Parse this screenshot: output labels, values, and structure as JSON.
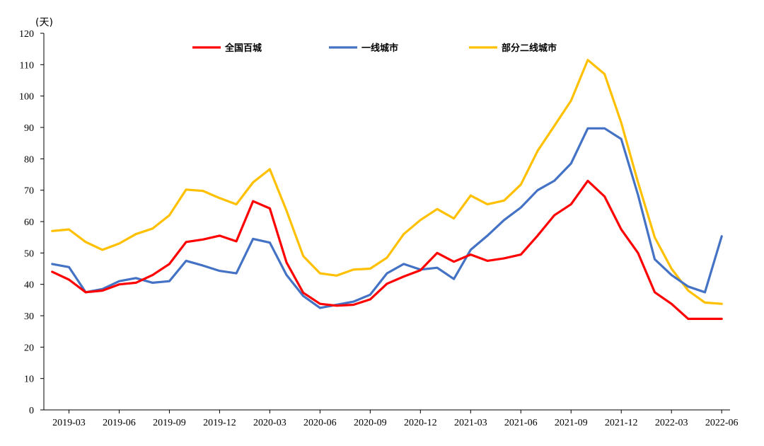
{
  "chart_data": {
    "type": "line",
    "unit_label": "(天)",
    "ylim": [
      0,
      120
    ],
    "y_ticks": [
      0,
      10,
      20,
      30,
      40,
      50,
      60,
      70,
      80,
      90,
      100,
      110,
      120
    ],
    "x_tick_labels": [
      "2019-03",
      "2019-06",
      "2019-09",
      "2019-12",
      "2020-03",
      "2020-06",
      "2020-09",
      "2020-12",
      "2021-03",
      "2021-06",
      "2021-09",
      "2021-12",
      "2022-03",
      "2022-06"
    ],
    "x": [
      "2019-02",
      "2019-03",
      "2019-04",
      "2019-05",
      "2019-06",
      "2019-07",
      "2019-08",
      "2019-09",
      "2019-10",
      "2019-11",
      "2019-12",
      "2020-01",
      "2020-02",
      "2020-03",
      "2020-04",
      "2020-05",
      "2020-06",
      "2020-07",
      "2020-08",
      "2020-09",
      "2020-10",
      "2020-11",
      "2020-12",
      "2021-01",
      "2021-02",
      "2021-03",
      "2021-04",
      "2021-05",
      "2021-06",
      "2021-07",
      "2021-08",
      "2021-09",
      "2021-10",
      "2021-11",
      "2021-12",
      "2022-01",
      "2022-02",
      "2022-03",
      "2022-04",
      "2022-05",
      "2022-06"
    ],
    "grid": false,
    "legend_position": "top-center",
    "series": [
      {
        "name": "全国百城",
        "color": "#ff0000",
        "values": [
          44,
          41.5,
          37.5,
          38,
          40,
          40.5,
          43,
          46.5,
          53.5,
          54.3,
          55.5,
          53.7,
          66.5,
          64.2,
          47,
          37.3,
          33.8,
          33.2,
          33.5,
          35.2,
          40.2,
          42.5,
          44.5,
          50,
          47.2,
          49.5,
          47.5,
          48.3,
          49.5,
          55.5,
          62,
          65.5,
          73,
          68,
          57.5,
          50,
          37.5,
          33.8,
          29,
          29,
          29
        ]
      },
      {
        "name": "一线城市",
        "color": "#4472c4",
        "values": [
          46.5,
          45.5,
          37.5,
          38.5,
          41,
          42,
          40.5,
          41,
          47.5,
          46,
          44.3,
          43.5,
          54.5,
          53.3,
          43,
          36.3,
          32.5,
          33.5,
          34.5,
          36.7,
          43.5,
          46.5,
          44.7,
          45.3,
          41.7,
          51,
          55.5,
          60.5,
          64.5,
          70,
          73,
          78.5,
          89.7,
          89.7,
          86.3,
          68.5,
          48,
          43,
          39.3,
          37.5,
          55.3
        ]
      },
      {
        "name": "部分二线城市",
        "color": "#ffc000",
        "values": [
          57,
          57.5,
          53.5,
          51,
          53,
          56,
          57.8,
          62,
          70.2,
          69.8,
          67.5,
          65.5,
          72.5,
          76.7,
          63.5,
          49,
          43.5,
          42.8,
          44.7,
          45,
          48.5,
          56,
          60.5,
          64,
          61,
          68.3,
          65.5,
          66.7,
          71.8,
          82.5,
          90.5,
          98.5,
          111.5,
          107,
          91.5,
          72.5,
          55,
          45,
          38,
          34.2,
          33.8
        ]
      }
    ]
  }
}
